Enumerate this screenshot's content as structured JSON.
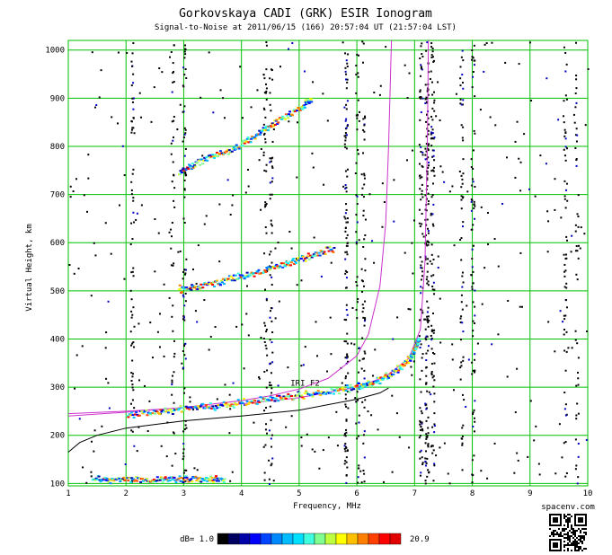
{
  "chart_data": {
    "type": "scatter",
    "title": "Gorkovskaya CADI (GRK) ESIR Ionogram",
    "subtitle": "Signal-to-Noise at 2011/06/15 (166) 20:57:04 UT (21:57:04 LST)",
    "xlabel": "Frequency, MHz",
    "ylabel": "Virtual Height, km",
    "xlim": [
      1,
      10
    ],
    "ylim": [
      95,
      1020
    ],
    "x_ticks": [
      "1",
      "2",
      "3",
      "4",
      "5",
      "6",
      "7",
      "8",
      "9",
      "10"
    ],
    "y_ticks": [
      "100",
      "200",
      "300",
      "400",
      "500",
      "600",
      "700",
      "800",
      "900",
      "1000"
    ],
    "grid": true,
    "grid_color": "#00c000",
    "annotation": "IRI F2",
    "series": [
      {
        "role": "iri-virtual-height-curve",
        "color": "#cc33cc",
        "x": [
          1.0,
          2.0,
          3.0,
          4.0,
          4.5,
          5.0,
          5.5,
          6.0,
          6.2,
          6.4,
          6.5,
          6.55,
          6.6
        ],
        "y": [
          240,
          248,
          258,
          272,
          282,
          296,
          318,
          365,
          410,
          510,
          640,
          800,
          1020
        ]
      },
      {
        "role": "iri-virtual-height-curve",
        "color": "#cc33cc",
        "x": [
          1.0,
          2.0,
          3.0,
          4.0,
          5.0,
          6.0,
          6.5,
          6.9,
          7.1,
          7.18,
          7.22,
          7.24
        ],
        "y": [
          245,
          250,
          257,
          265,
          278,
          300,
          322,
          360,
          420,
          560,
          800,
          1020
        ]
      },
      {
        "role": "iri-true-height-profile",
        "color": "#000000",
        "x": [
          1.0,
          1.2,
          1.5,
          2.0,
          3.0,
          4.0,
          5.0,
          6.0,
          6.4,
          6.55
        ],
        "y": [
          165,
          185,
          200,
          215,
          230,
          240,
          252,
          275,
          288,
          298
        ]
      }
    ],
    "echo_traces": [
      {
        "name": "F-layer 1st hop",
        "x": [
          2.0,
          2.5,
          3.0,
          3.5,
          4.0,
          4.5,
          5.0,
          5.5,
          6.0,
          6.3,
          6.6,
          6.9,
          7.0,
          7.05
        ],
        "y": [
          245,
          250,
          257,
          262,
          270,
          278,
          285,
          293,
          303,
          312,
          330,
          360,
          385,
          402
        ]
      },
      {
        "name": "F-layer 2nd hop",
        "x": [
          2.9,
          3.2,
          3.6,
          4.0,
          4.4,
          4.8,
          5.2,
          5.6
        ],
        "y": [
          505,
          510,
          520,
          532,
          545,
          560,
          575,
          590
        ]
      },
      {
        "name": "F-layer 3rd hop",
        "x": [
          2.9,
          3.2,
          3.6,
          4.0,
          4.3,
          4.6,
          5.0,
          5.2
        ],
        "y": [
          750,
          765,
          785,
          805,
          830,
          855,
          880,
          900
        ]
      },
      {
        "name": "low-height echoes",
        "x": [
          1.4,
          1.8,
          2.2,
          2.6,
          3.0,
          3.4,
          3.7
        ],
        "y": [
          112,
          110,
          111,
          110,
          111,
          110,
          111
        ]
      }
    ],
    "colorbar": {
      "label": "dB= 1.0",
      "max_label": "20.9",
      "colors": [
        "#000000",
        "#000060",
        "#0000a8",
        "#0000ff",
        "#0044ff",
        "#0088ff",
        "#00bbff",
        "#00e0ff",
        "#40ffe0",
        "#80ff90",
        "#c0ff40",
        "#ffff00",
        "#ffc000",
        "#ff8000",
        "#ff4000",
        "#ff0000",
        "#e00000"
      ]
    }
  },
  "footer": {
    "site": "spacenv.com"
  }
}
